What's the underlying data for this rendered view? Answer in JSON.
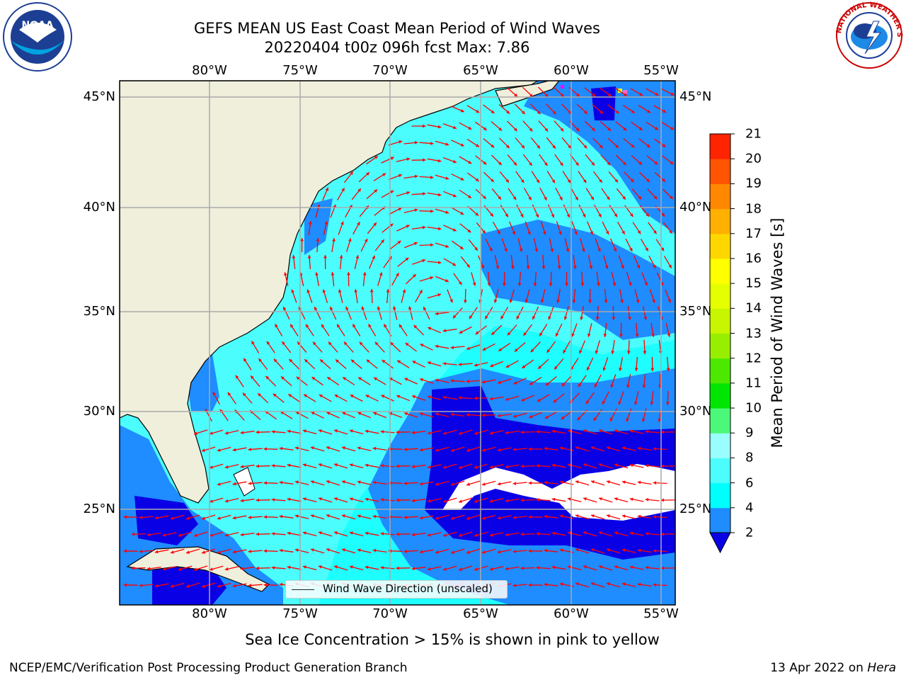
{
  "title": {
    "line1": "GEFS MEAN US East Coast Mean Period of Wind Waves",
    "line2": "20220404 t00z 096h fcst   Max: 7.86"
  },
  "logos": {
    "left": {
      "name": "noaa-logo",
      "text": "NOAA"
    },
    "right": {
      "name": "nws-logo",
      "text": "NATIONAL WEATHER SERVICE"
    }
  },
  "map": {
    "lon_labels": [
      "80°W",
      "75°W",
      "70°W",
      "65°W",
      "60°W",
      "55°W"
    ],
    "lat_labels": [
      "45°N",
      "40°N",
      "35°N",
      "30°N",
      "25°N"
    ],
    "land_color": "#efefdc",
    "ocean_levels": {
      "below_2": "#0a00e6",
      "2_4": "#1f8cff",
      "4_6": "#00ffff",
      "6_8": "#4cfdfd"
    },
    "arrow_color": "#ff0000",
    "legend": "Wind Wave Direction (unscaled)"
  },
  "colorbar": {
    "label": "Mean Period of Wind Waves [s]",
    "ticks": [
      "2",
      "4",
      "6",
      "8",
      "9",
      "10",
      "11",
      "12",
      "13",
      "14",
      "15",
      "16",
      "17",
      "18",
      "19",
      "20",
      "21"
    ],
    "colors": [
      "#1f8cff",
      "#00ffff",
      "#4cfdfd",
      "#9bfefe",
      "#4cf87a",
      "#00e600",
      "#4ce800",
      "#97ee00",
      "#c8f500",
      "#e6ff00",
      "#ffff00",
      "#ffd700",
      "#ffb000",
      "#ff8800",
      "#ff5500",
      "#ff2400"
    ],
    "under_color": "#0a00e6"
  },
  "subtitle": "Sea Ice Concentration > 15% is shown in pink to yellow",
  "footer": {
    "left": "NCEP/EMC/Verification Post Processing Product Generation Branch",
    "right_prefix": "13 Apr 2022 on ",
    "right_machine": "Hera"
  }
}
